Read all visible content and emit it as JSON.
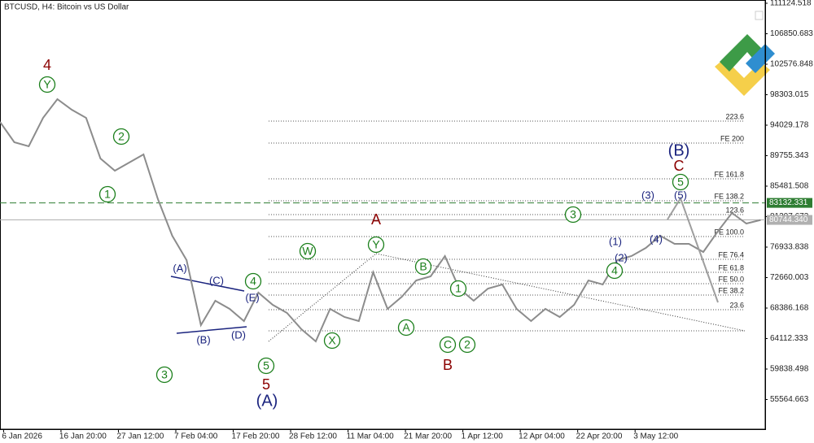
{
  "chart_data": {
    "type": "line",
    "title": "BTCUSD, H4:  Bitcoin vs US Dollar",
    "x": [
      -4,
      12,
      28,
      44,
      60,
      76,
      92,
      108,
      124,
      140,
      156,
      172,
      188,
      204,
      220,
      236,
      252,
      268,
      284,
      300,
      316,
      332,
      348,
      364,
      380,
      396,
      412,
      428,
      444,
      460,
      476,
      492,
      508,
      524,
      540,
      556,
      572,
      588,
      604,
      620,
      636,
      652,
      668,
      684,
      700,
      716,
      732,
      748,
      764,
      780,
      796,
      812,
      828,
      844
    ],
    "series": [
      {
        "name": "BTCUSD",
        "color": "#8c8c8c",
        "values": [
          94485,
          91636,
          91066,
          95055,
          97676,
          96195,
          95055,
          89356,
          87647,
          88787,
          89926,
          83658,
          78529,
          75110,
          65993,
          69412,
          68272,
          66562,
          70552,
          68842,
          67702,
          65423,
          63713,
          68272,
          67133,
          66562,
          73400,
          68272,
          69981,
          72261,
          72831,
          75680,
          71122,
          69412,
          71122,
          71691,
          68272,
          66562,
          68272,
          67133,
          68842,
          72261,
          71691,
          75110,
          75680,
          76820,
          78529,
          77390,
          77390,
          76249,
          79099,
          81721,
          80239,
          80744
        ]
      }
    ],
    "xlim": [
      -4,
      849
    ],
    "xticks": [
      {
        "value": 0,
        "label": "6 Jan 2026"
      },
      {
        "value": 64,
        "label": "16 Jan 20:00"
      },
      {
        "value": 128,
        "label": "27 Jan 12:00"
      },
      {
        "value": 192,
        "label": "7 Feb 04:00"
      },
      {
        "value": 256,
        "label": "17 Feb 20:00"
      },
      {
        "value": 320,
        "label": "28 Feb 12:00"
      },
      {
        "value": 384,
        "label": "11 Mar 04:00"
      },
      {
        "value": 448,
        "label": "21 Mar 20:00"
      },
      {
        "value": 512,
        "label": "1 Apr 12:00"
      },
      {
        "value": 576,
        "label": "12 Apr 04:00"
      },
      {
        "value": 640,
        "label": "22 Apr 20:00"
      },
      {
        "value": 704,
        "label": "3 May 12:00"
      }
    ],
    "ylim": [
      51404,
      111580
    ],
    "yticks": [
      111124.518,
      106850.683,
      102576.848,
      98303.015,
      94029.178,
      89755.343,
      85481.508,
      81207.673,
      76933.838,
      72660.003,
      68386.168,
      64112.333,
      59838.498,
      55564.663
    ],
    "price_lines": [
      {
        "value": 83132.331,
        "label": "83132.331",
        "color": "#2e7d32"
      },
      {
        "value": 80744.34,
        "label": "80744.340",
        "color": "#b0b0b0"
      }
    ],
    "fib_levels": [
      {
        "value": 94598,
        "label": "223.6"
      },
      {
        "value": 91522,
        "label": "FE 200"
      },
      {
        "value": 86507,
        "label": "FE 161.8"
      },
      {
        "value": 83430,
        "label": "FE 138.2"
      },
      {
        "value": 81492,
        "label": "123.6"
      },
      {
        "value": 78415,
        "label": "FE 100.0"
      },
      {
        "value": 75224,
        "label": "FE 76.4"
      },
      {
        "value": 73401,
        "label": "FE 61.8"
      },
      {
        "value": 71806,
        "label": "FE 50.0"
      },
      {
        "value": 70210,
        "label": "FE 38.2"
      },
      {
        "value": 68159,
        "label": "23.6"
      }
    ],
    "fib_base": 65196,
    "annotations": [
      "4",
      "Y",
      "2",
      "1",
      "3",
      "(A)",
      "(C)",
      "(B)",
      "(D)",
      "(E)",
      "4",
      "5",
      "5",
      "(A)",
      "W",
      "X",
      "A",
      "Y",
      "B",
      "A",
      "1",
      "C",
      "2",
      "B",
      "3",
      "(1)",
      "(2)",
      "4",
      "(3)",
      "(4)",
      "(5)",
      "5",
      "C",
      "(B)"
    ]
  }
}
